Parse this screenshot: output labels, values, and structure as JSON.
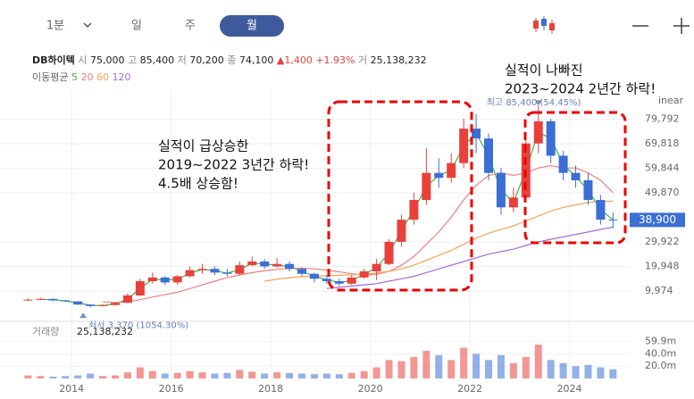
{
  "tabs": [
    "1분",
    "일",
    "주",
    "월"
  ],
  "quote": {
    "name": "DB하이텍",
    "items": [
      {
        "label": "시",
        "value": "75,000"
      },
      {
        "label": "고",
        "value": "85,400"
      },
      {
        "label": "저",
        "value": "70,200"
      },
      {
        "label": "종",
        "value": "74,100"
      }
    ],
    "change": "▲1,400 +1.93%",
    "volume_label": "거",
    "volume": "25,138,232"
  },
  "chart_data": {
    "type": "candlestick",
    "scale_label": "inear",
    "ma_title": "이동평균",
    "up_color": "#e8413c",
    "down_color": "#3b6fd6",
    "x": [
      2013.125,
      2013.375,
      2013.625,
      2013.875,
      2014.125,
      2014.375,
      2014.625,
      2014.875,
      2015.125,
      2015.375,
      2015.625,
      2015.875,
      2016.125,
      2016.375,
      2016.625,
      2016.875,
      2017.125,
      2017.375,
      2017.625,
      2017.875,
      2018.125,
      2018.375,
      2018.625,
      2018.875,
      2019.125,
      2019.375,
      2019.625,
      2019.875,
      2020.125,
      2020.375,
      2020.625,
      2020.875,
      2021.125,
      2021.375,
      2021.625,
      2021.875,
      2022.125,
      2022.375,
      2022.625,
      2022.875,
      2023.125,
      2023.375,
      2023.625,
      2023.875,
      2024.125,
      2024.375,
      2024.625,
      2024.875
    ],
    "open": [
      6300,
      6500,
      6800,
      6200,
      5800,
      4500,
      3900,
      4300,
      5200,
      8200,
      14000,
      15500,
      13500,
      16000,
      18500,
      19000,
      17500,
      17000,
      20500,
      22000,
      20000,
      21000,
      19000,
      17000,
      15000,
      14000,
      13000,
      15500,
      18000,
      21000,
      30000,
      39000,
      47000,
      58000,
      56000,
      62000,
      76000,
      72000,
      58000,
      44000,
      48000,
      70000,
      79000,
      65000,
      58000,
      55000,
      47000,
      39000
    ],
    "high": [
      7000,
      7200,
      7000,
      6400,
      5900,
      4700,
      4600,
      5500,
      9000,
      15000,
      17500,
      16000,
      16500,
      20000,
      21000,
      20000,
      19000,
      22000,
      24000,
      23000,
      23500,
      22000,
      19500,
      17500,
      16500,
      15000,
      16500,
      19000,
      23000,
      31000,
      41000,
      50000,
      68000,
      64000,
      66000,
      80000,
      82000,
      74000,
      60000,
      52000,
      74000,
      85400,
      80000,
      67000,
      61000,
      58000,
      49000,
      42000
    ],
    "low": [
      6000,
      6300,
      5900,
      5500,
      4300,
      3370,
      3700,
      4200,
      5100,
      8000,
      13000,
      12500,
      12500,
      15500,
      17000,
      16500,
      16000,
      16500,
      20000,
      19000,
      19500,
      18000,
      16000,
      13500,
      13000,
      12000,
      12500,
      15000,
      14500,
      20500,
      28000,
      37000,
      45000,
      52000,
      54000,
      60000,
      66000,
      55000,
      41000,
      42000,
      47000,
      66000,
      62000,
      55000,
      52000,
      45000,
      37000,
      35500
    ],
    "close": [
      6500,
      6800,
      6200,
      5800,
      4500,
      3900,
      4300,
      5200,
      8200,
      14000,
      15500,
      13500,
      16000,
      18500,
      19000,
      17500,
      17000,
      20500,
      22000,
      20000,
      21000,
      19000,
      17000,
      15000,
      14000,
      13000,
      15500,
      18000,
      21000,
      30000,
      39000,
      47000,
      58000,
      56000,
      62000,
      76000,
      72000,
      58000,
      44000,
      48000,
      70000,
      79000,
      65000,
      58000,
      55000,
      47000,
      39000,
      38900
    ],
    "series": [
      {
        "name": "5",
        "color": "#3cb44b",
        "values": [
          null,
          6650,
          6500,
          6000,
          5150,
          4200,
          4100,
          4750,
          6700,
          11100,
          14750,
          14500,
          14750,
          17250,
          18750,
          18250,
          17250,
          18750,
          21250,
          21000,
          20500,
          20000,
          18000,
          16000,
          14500,
          13500,
          14250,
          16750,
          19500,
          25500,
          34500,
          43000,
          52500,
          57000,
          59000,
          69000,
          74000,
          65000,
          51000,
          46000,
          59000,
          74500,
          72000,
          61500,
          56500,
          51000,
          43000,
          38950
        ]
      },
      {
        "name": "20",
        "color": "#f07f7f",
        "values": [
          null,
          null,
          null,
          null,
          null,
          null,
          5600,
          5300,
          5600,
          6500,
          7600,
          8500,
          9500,
          11000,
          12500,
          14000,
          15500,
          16500,
          17500,
          18200,
          18800,
          19200,
          19300,
          19000,
          18500,
          17800,
          17000,
          16500,
          16800,
          18000,
          20500,
          24000,
          29000,
          34000,
          40000,
          47000,
          53000,
          57000,
          58000,
          57000,
          58000,
          60000,
          61000,
          60000,
          60000,
          58000,
          55000,
          50000
        ]
      },
      {
        "name": "60",
        "color": "#f4a259",
        "values": [
          null,
          null,
          null,
          null,
          null,
          null,
          null,
          null,
          null,
          null,
          null,
          null,
          null,
          null,
          null,
          null,
          null,
          null,
          null,
          14000,
          14800,
          15400,
          15800,
          16000,
          16200,
          16400,
          16600,
          16900,
          17300,
          18000,
          19000,
          20500,
          22500,
          24500,
          26500,
          29000,
          31500,
          33500,
          35000,
          36500,
          38500,
          40500,
          42500,
          44000,
          45000,
          46000,
          46500,
          46500
        ]
      },
      {
        "name": "120",
        "color": "#a66bd6",
        "values": [
          null,
          null,
          null,
          null,
          null,
          null,
          null,
          null,
          null,
          null,
          null,
          null,
          null,
          null,
          null,
          null,
          null,
          null,
          null,
          null,
          null,
          null,
          null,
          null,
          11000,
          11500,
          12000,
          12500,
          13000,
          14000,
          15000,
          16000,
          17500,
          19000,
          20500,
          22000,
          23500,
          25000,
          26000,
          27000,
          28500,
          30000,
          31000,
          32000,
          33000,
          34000,
          35000,
          36000
        ]
      }
    ],
    "xlim": [
      2012.92,
      2025.12
    ],
    "xticks": [
      2014,
      2016,
      2018,
      2020,
      2022,
      2024
    ],
    "ylim": [
      0,
      92000
    ],
    "yticks": [
      {
        "value": 9974,
        "label": "9,974"
      },
      {
        "value": 19948,
        "label": "19,948"
      },
      {
        "value": 29922,
        "label": "29,922"
      },
      {
        "value": 49870,
        "label": "49,870"
      },
      {
        "value": 59844,
        "label": "59,844"
      },
      {
        "value": 69818,
        "label": "69,818"
      },
      {
        "value": 79792,
        "label": "79,792"
      }
    ],
    "grid": true,
    "price_tag": {
      "value": 38900,
      "label": "38,900"
    },
    "extremes": [
      {
        "label": "최고 85,400 (54.45%)",
        "value": 85400,
        "x": 2023.375
      },
      {
        "label": "최저 3,370 (1054.30%)",
        "value": 3370,
        "x": 2014.375
      }
    ],
    "annotations": [
      {
        "lines": [
          "실적이 급상승한",
          "2019~2022 3년간 하락!",
          "4.5배 상승함!"
        ]
      },
      {
        "lines": [
          "실적이 나빠진",
          "2023~2024 2년간 하락!"
        ]
      }
    ],
    "volume": {
      "title": "거래량",
      "total": "25,138,232",
      "values": [
        5000000,
        4000000,
        3000000,
        4000000,
        5000000,
        8000000,
        4000000,
        5000000,
        10000000,
        18000000,
        12000000,
        8000000,
        9000000,
        12000000,
        10000000,
        8000000,
        9000000,
        14000000,
        11000000,
        8000000,
        10000000,
        9000000,
        8000000,
        7000000,
        8000000,
        7000000,
        9000000,
        12000000,
        18000000,
        30000000,
        28000000,
        35000000,
        45000000,
        38000000,
        30000000,
        50000000,
        40000000,
        30000000,
        38000000,
        25000000,
        35000000,
        55000000,
        30000000,
        25000000,
        20000000,
        22000000,
        18000000,
        15000000
      ],
      "ylim": [
        0,
        90000000
      ],
      "yticks": [
        {
          "value": 20000000,
          "label": "20.0m"
        },
        {
          "value": 40000000,
          "label": "40.0m"
        },
        {
          "value": 59900000,
          "label": "59.9m"
        }
      ]
    }
  }
}
